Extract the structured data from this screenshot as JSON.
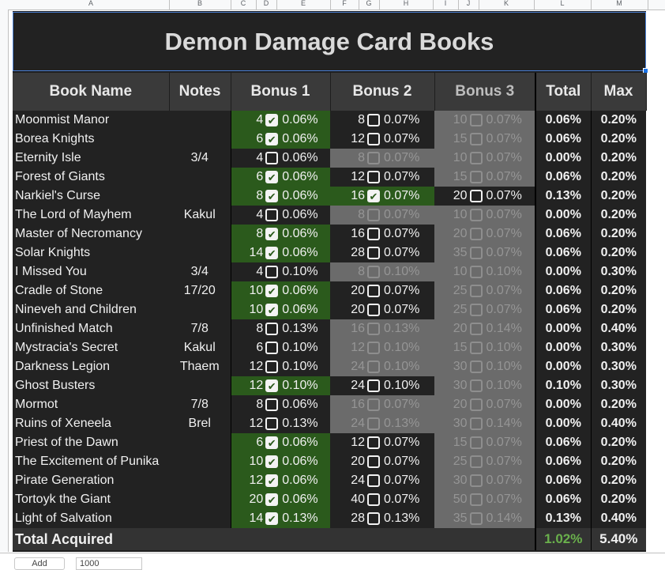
{
  "column_letters": [
    "A",
    "B",
    "C",
    "D",
    "E",
    "F",
    "G",
    "H",
    "I",
    "J",
    "K",
    "L",
    "M"
  ],
  "title": "Demon Damage Card Books",
  "headers": {
    "name": "Book Name",
    "notes": "Notes",
    "bonus1": "Bonus 1",
    "bonus2": "Bonus 2",
    "bonus3": "Bonus 3",
    "total": "Total",
    "max": "Max"
  },
  "books": [
    {
      "name": "Moonmist Manor",
      "notes": "",
      "total": "0.06%",
      "max": "0.20%",
      "b": [
        {
          "n": "4",
          "p": "0.06%",
          "checked": true,
          "state": "owned"
        },
        {
          "n": "8",
          "p": "0.07%",
          "checked": false,
          "state": "open"
        },
        {
          "n": "10",
          "p": "0.07%",
          "checked": false,
          "state": "na"
        }
      ]
    },
    {
      "name": "Borea Knights",
      "notes": "",
      "total": "0.06%",
      "max": "0.20%",
      "b": [
        {
          "n": "6",
          "p": "0.06%",
          "checked": true,
          "state": "owned"
        },
        {
          "n": "12",
          "p": "0.07%",
          "checked": false,
          "state": "open"
        },
        {
          "n": "15",
          "p": "0.07%",
          "checked": false,
          "state": "na"
        }
      ]
    },
    {
      "name": "Eternity Isle",
      "notes": "3/4",
      "total": "0.00%",
      "max": "0.20%",
      "b": [
        {
          "n": "4",
          "p": "0.06%",
          "checked": false,
          "state": "open"
        },
        {
          "n": "8",
          "p": "0.07%",
          "checked": false,
          "state": "na"
        },
        {
          "n": "10",
          "p": "0.07%",
          "checked": false,
          "state": "na"
        }
      ]
    },
    {
      "name": "Forest of Giants",
      "notes": "",
      "total": "0.06%",
      "max": "0.20%",
      "b": [
        {
          "n": "6",
          "p": "0.06%",
          "checked": true,
          "state": "owned"
        },
        {
          "n": "12",
          "p": "0.07%",
          "checked": false,
          "state": "open"
        },
        {
          "n": "15",
          "p": "0.07%",
          "checked": false,
          "state": "na"
        }
      ]
    },
    {
      "name": "Narkiel's Curse",
      "notes": "",
      "total": "0.13%",
      "max": "0.20%",
      "b": [
        {
          "n": "8",
          "p": "0.06%",
          "checked": true,
          "state": "owned"
        },
        {
          "n": "16",
          "p": "0.07%",
          "checked": true,
          "state": "owned"
        },
        {
          "n": "20",
          "p": "0.07%",
          "checked": false,
          "state": "open"
        }
      ]
    },
    {
      "name": "The Lord of Mayhem",
      "notes": "Kakul",
      "total": "0.00%",
      "max": "0.20%",
      "b": [
        {
          "n": "4",
          "p": "0.06%",
          "checked": false,
          "state": "open"
        },
        {
          "n": "8",
          "p": "0.07%",
          "checked": false,
          "state": "na"
        },
        {
          "n": "10",
          "p": "0.07%",
          "checked": false,
          "state": "na"
        }
      ]
    },
    {
      "name": "Master of Necromancy",
      "notes": "",
      "total": "0.06%",
      "max": "0.20%",
      "b": [
        {
          "n": "8",
          "p": "0.06%",
          "checked": true,
          "state": "owned"
        },
        {
          "n": "16",
          "p": "0.07%",
          "checked": false,
          "state": "open"
        },
        {
          "n": "20",
          "p": "0.07%",
          "checked": false,
          "state": "na"
        }
      ]
    },
    {
      "name": "Solar Knights",
      "notes": "",
      "total": "0.06%",
      "max": "0.20%",
      "b": [
        {
          "n": "14",
          "p": "0.06%",
          "checked": true,
          "state": "owned"
        },
        {
          "n": "28",
          "p": "0.07%",
          "checked": false,
          "state": "open"
        },
        {
          "n": "35",
          "p": "0.07%",
          "checked": false,
          "state": "na"
        }
      ]
    },
    {
      "name": "I Missed You",
      "notes": "3/4",
      "total": "0.00%",
      "max": "0.30%",
      "b": [
        {
          "n": "4",
          "p": "0.10%",
          "checked": false,
          "state": "open"
        },
        {
          "n": "8",
          "p": "0.10%",
          "checked": false,
          "state": "na"
        },
        {
          "n": "10",
          "p": "0.10%",
          "checked": false,
          "state": "na"
        }
      ]
    },
    {
      "name": "Cradle of Stone",
      "notes": "17/20",
      "total": "0.06%",
      "max": "0.20%",
      "b": [
        {
          "n": "10",
          "p": "0.06%",
          "checked": true,
          "state": "owned"
        },
        {
          "n": "20",
          "p": "0.07%",
          "checked": false,
          "state": "open"
        },
        {
          "n": "25",
          "p": "0.07%",
          "checked": false,
          "state": "na"
        }
      ]
    },
    {
      "name": "Nineveh and Children",
      "notes": "",
      "total": "0.06%",
      "max": "0.20%",
      "b": [
        {
          "n": "10",
          "p": "0.06%",
          "checked": true,
          "state": "owned"
        },
        {
          "n": "20",
          "p": "0.07%",
          "checked": false,
          "state": "open"
        },
        {
          "n": "25",
          "p": "0.07%",
          "checked": false,
          "state": "na"
        }
      ]
    },
    {
      "name": "Unfinished Match",
      "notes": "7/8",
      "total": "0.00%",
      "max": "0.40%",
      "b": [
        {
          "n": "8",
          "p": "0.13%",
          "checked": false,
          "state": "open"
        },
        {
          "n": "16",
          "p": "0.13%",
          "checked": false,
          "state": "na"
        },
        {
          "n": "20",
          "p": "0.14%",
          "checked": false,
          "state": "na"
        }
      ]
    },
    {
      "name": "Mystracia's Secret",
      "notes": "Kakul",
      "total": "0.00%",
      "max": "0.30%",
      "b": [
        {
          "n": "6",
          "p": "0.10%",
          "checked": false,
          "state": "open"
        },
        {
          "n": "12",
          "p": "0.10%",
          "checked": false,
          "state": "na"
        },
        {
          "n": "15",
          "p": "0.10%",
          "checked": false,
          "state": "na"
        }
      ]
    },
    {
      "name": "Darkness Legion",
      "notes": "Thaem",
      "total": "0.00%",
      "max": "0.30%",
      "b": [
        {
          "n": "12",
          "p": "0.10%",
          "checked": false,
          "state": "open"
        },
        {
          "n": "24",
          "p": "0.10%",
          "checked": false,
          "state": "na"
        },
        {
          "n": "30",
          "p": "0.10%",
          "checked": false,
          "state": "na"
        }
      ]
    },
    {
      "name": "Ghost Busters",
      "notes": "",
      "total": "0.10%",
      "max": "0.30%",
      "b": [
        {
          "n": "12",
          "p": "0.10%",
          "checked": true,
          "state": "owned"
        },
        {
          "n": "24",
          "p": "0.10%",
          "checked": false,
          "state": "open"
        },
        {
          "n": "30",
          "p": "0.10%",
          "checked": false,
          "state": "na"
        }
      ]
    },
    {
      "name": "Mormot",
      "notes": "7/8",
      "total": "0.00%",
      "max": "0.20%",
      "b": [
        {
          "n": "8",
          "p": "0.06%",
          "checked": false,
          "state": "open"
        },
        {
          "n": "16",
          "p": "0.07%",
          "checked": false,
          "state": "na"
        },
        {
          "n": "20",
          "p": "0.07%",
          "checked": false,
          "state": "na"
        }
      ]
    },
    {
      "name": "Ruins of Xeneela",
      "notes": "Brel",
      "total": "0.00%",
      "max": "0.40%",
      "b": [
        {
          "n": "12",
          "p": "0.13%",
          "checked": false,
          "state": "open"
        },
        {
          "n": "24",
          "p": "0.13%",
          "checked": false,
          "state": "na"
        },
        {
          "n": "30",
          "p": "0.14%",
          "checked": false,
          "state": "na"
        }
      ]
    },
    {
      "name": "Priest of the Dawn",
      "notes": "",
      "total": "0.06%",
      "max": "0.20%",
      "b": [
        {
          "n": "6",
          "p": "0.06%",
          "checked": true,
          "state": "owned"
        },
        {
          "n": "12",
          "p": "0.07%",
          "checked": false,
          "state": "open"
        },
        {
          "n": "15",
          "p": "0.07%",
          "checked": false,
          "state": "na"
        }
      ]
    },
    {
      "name": "The Excitement of Punika",
      "notes": "",
      "total": "0.06%",
      "max": "0.20%",
      "b": [
        {
          "n": "10",
          "p": "0.06%",
          "checked": true,
          "state": "owned"
        },
        {
          "n": "20",
          "p": "0.07%",
          "checked": false,
          "state": "open"
        },
        {
          "n": "25",
          "p": "0.07%",
          "checked": false,
          "state": "na"
        }
      ]
    },
    {
      "name": "Pirate Generation",
      "notes": "",
      "total": "0.06%",
      "max": "0.20%",
      "b": [
        {
          "n": "12",
          "p": "0.06%",
          "checked": true,
          "state": "owned"
        },
        {
          "n": "24",
          "p": "0.07%",
          "checked": false,
          "state": "open"
        },
        {
          "n": "30",
          "p": "0.07%",
          "checked": false,
          "state": "na"
        }
      ]
    },
    {
      "name": "Tortoyk the Giant",
      "notes": "",
      "total": "0.06%",
      "max": "0.20%",
      "b": [
        {
          "n": "20",
          "p": "0.06%",
          "checked": true,
          "state": "owned"
        },
        {
          "n": "40",
          "p": "0.07%",
          "checked": false,
          "state": "open"
        },
        {
          "n": "50",
          "p": "0.07%",
          "checked": false,
          "state": "na"
        }
      ]
    },
    {
      "name": "Light of Salvation",
      "notes": "",
      "total": "0.13%",
      "max": "0.40%",
      "b": [
        {
          "n": "14",
          "p": "0.13%",
          "checked": true,
          "state": "owned"
        },
        {
          "n": "28",
          "p": "0.13%",
          "checked": false,
          "state": "open"
        },
        {
          "n": "35",
          "p": "0.14%",
          "checked": false,
          "state": "na"
        }
      ]
    }
  ],
  "footer": {
    "label": "Total Acquired",
    "total": "1.02%",
    "max": "5.40%"
  },
  "bottom": {
    "add_label": "Add",
    "rows_value": "1000"
  },
  "colors": {
    "owned": "#2b5a1c",
    "unavailable": "#6b6b6b",
    "total_green": "#6ab04c",
    "selection": "#1a73e8"
  }
}
